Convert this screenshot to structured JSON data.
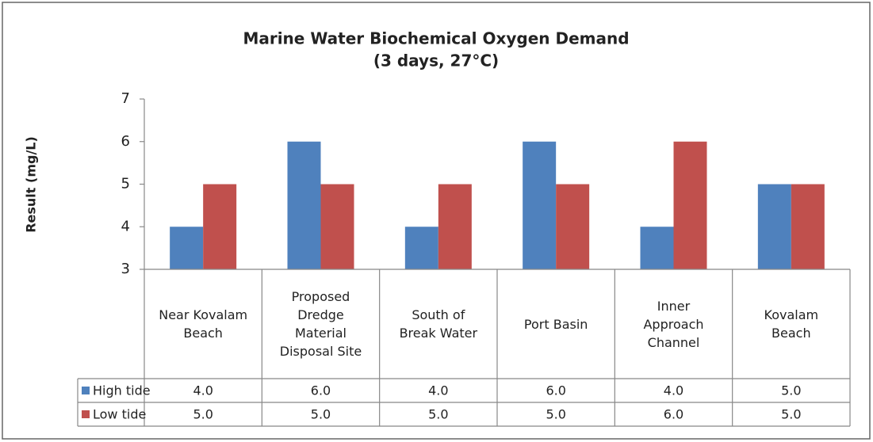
{
  "chart_data": {
    "type": "bar",
    "title": "Marine Water Biochemical Oxygen Demand",
    "subtitle": "(3 days, 27°C)",
    "y_label": "Result (mg/L)",
    "categories": [
      "Near Kovalam Beach",
      "Proposed Dredge Material Disposal Site",
      "South of Break Water",
      "Port Basin",
      "Inner Approach Channel",
      "Kovalam Beach"
    ],
    "series": [
      {
        "name": "High tide",
        "color": "#4f81bd",
        "values": [
          4,
          6,
          4,
          6,
          4,
          5
        ],
        "value_labels": [
          "4.0",
          "6.0",
          "4.0",
          "6.0",
          "4.0",
          "5.0"
        ]
      },
      {
        "name": "Low tide",
        "color": "#c0504d",
        "values": [
          5,
          5,
          5,
          5,
          6,
          5
        ],
        "value_labels": [
          "5.0",
          "5.0",
          "5.0",
          "5.0",
          "6.0",
          "5.0"
        ]
      }
    ],
    "ylim": [
      3,
      7
    ],
    "yticks": [
      3,
      4,
      5,
      6,
      7
    ],
    "grid": false
  }
}
